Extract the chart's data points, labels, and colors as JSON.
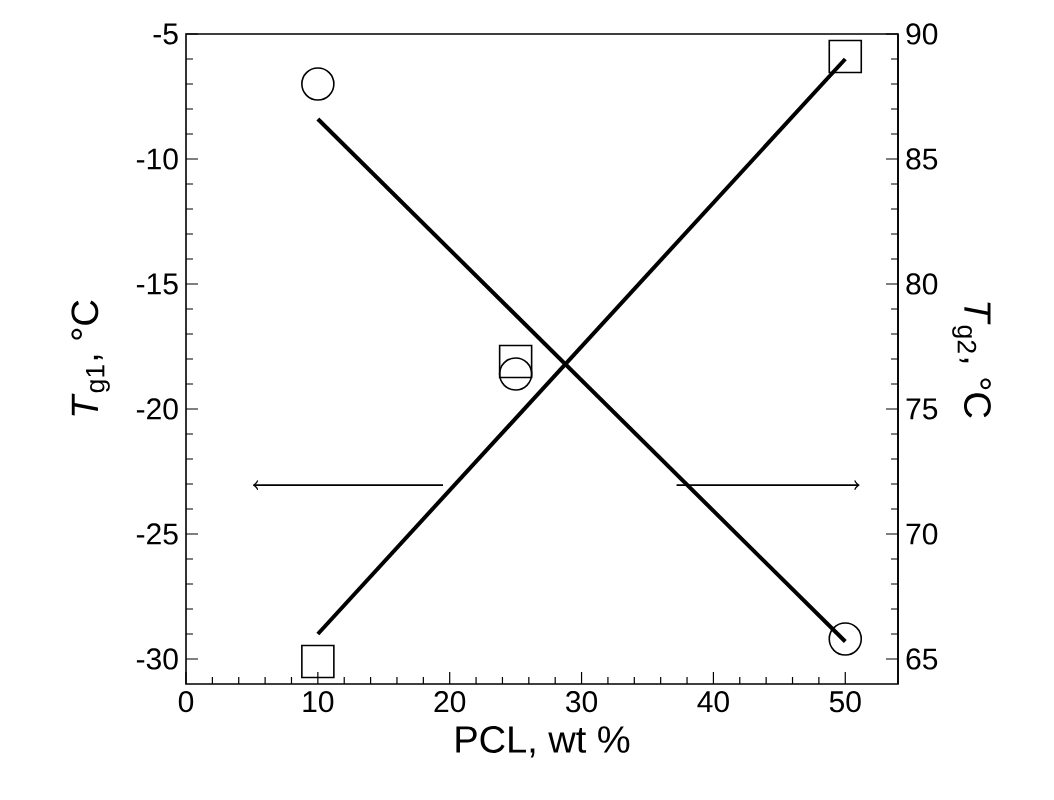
{
  "chart_data": {
    "type": "scatter",
    "xlabel": "PCL, wt %",
    "ylabel": "*T*$_{g1}$, °C",
    "y2label": "*T*$_{g2}$, °C",
    "xlim": [
      0,
      54
    ],
    "xticks": [
      0,
      10,
      20,
      30,
      40,
      50
    ],
    "ylim": [
      -31,
      -5
    ],
    "yticks": [
      -30,
      -25,
      -20,
      -15,
      -10,
      -5
    ],
    "y2lim": [
      64,
      90
    ],
    "y2ticks": [
      65,
      70,
      75,
      80,
      85,
      90
    ],
    "grid": false,
    "series": [
      {
        "marker": "circle",
        "color": "#000000",
        "x": [
          10,
          25,
          50
        ],
        "values": [
          -7.0,
          -18.6,
          -29.2
        ]
      },
      {
        "type": "line",
        "color": "#000000",
        "x": [
          10,
          50
        ],
        "values": [
          -8.4,
          -29.3
        ]
      },
      {
        "marker": "square",
        "axis": "y2",
        "color": "#000000",
        "x": [
          10,
          25,
          50
        ],
        "values": [
          64.9,
          76.9,
          89.1
        ]
      },
      {
        "type": "line",
        "axis": "y2",
        "color": "#000000",
        "x": [
          10,
          50
        ],
        "values": [
          66.0,
          89.0
        ]
      }
    ]
  }
}
